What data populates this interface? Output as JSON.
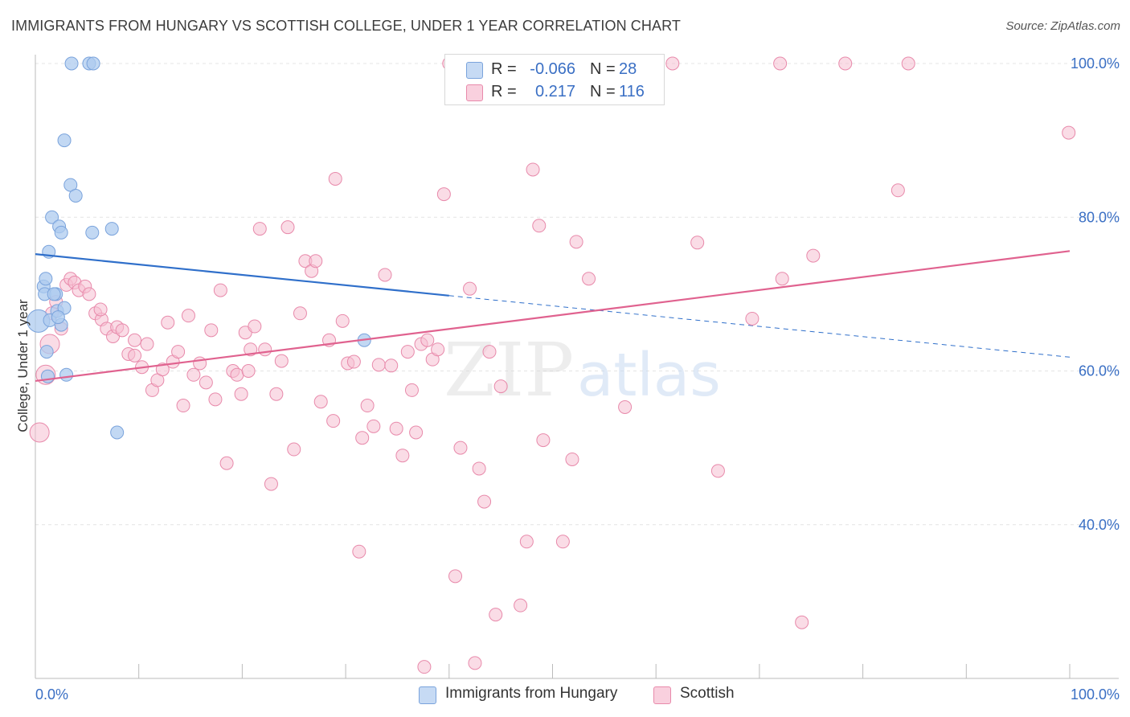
{
  "title": "IMMIGRANTS FROM HUNGARY VS SCOTTISH COLLEGE, UNDER 1 YEAR CORRELATION CHART",
  "source": "Source: ZipAtlas.com",
  "watermark": {
    "zip": "ZIP",
    "atlas": "atlas"
  },
  "legend_top": {
    "rows": [
      {
        "r_label": "R =",
        "r_value": "-0.066",
        "n_label": "N =",
        "n_value": "28"
      },
      {
        "r_label": "R =",
        "r_value": "0.217",
        "n_label": "N =",
        "n_value": "116"
      }
    ]
  },
  "legend_bottom": [
    "Immigrants from Hungary",
    "Scottish"
  ],
  "colors": {
    "blue_fill": "#aecbef",
    "blue_stroke": "#7aa3dc",
    "blue_line": "#2f6fca",
    "pink_fill": "#f6c0d2",
    "pink_stroke": "#e88aab",
    "pink_line": "#e0628f",
    "axis_text": "#3a6fc4",
    "grid": "#e4e4e4"
  },
  "chart_data": {
    "type": "scatter",
    "xlabel": "",
    "ylabel": "College, Under 1 year",
    "xlim": [
      0,
      100
    ],
    "ylim": [
      20,
      100
    ],
    "x_tick_labels": [
      "0.0%",
      "100.0%"
    ],
    "y_tick_labels": [
      "100.0%",
      "80.0%",
      "60.0%",
      "40.0%"
    ],
    "y_tick_values": [
      100,
      80,
      60,
      40
    ],
    "grid": true,
    "series": [
      {
        "name": "Immigrants from Hungary",
        "color": "#aecbef",
        "trend": {
          "x": [
            0,
            40
          ],
          "y": [
            75.2,
            69.8
          ],
          "extended_to": [
            100,
            61.8
          ]
        },
        "points": [
          [
            0.3,
            66.5,
            14
          ],
          [
            0.8,
            71.0,
            8
          ],
          [
            1.0,
            72.0,
            8
          ],
          [
            0.9,
            70.0,
            8
          ],
          [
            1.1,
            62.5,
            8
          ],
          [
            1.2,
            59.3,
            8
          ],
          [
            1.3,
            75.5,
            8
          ],
          [
            1.4,
            66.6,
            8
          ],
          [
            1.6,
            80.0,
            8
          ],
          [
            2.0,
            70.0,
            8
          ],
          [
            2.1,
            67.8,
            8
          ],
          [
            2.3,
            78.8,
            8
          ],
          [
            2.5,
            66.0,
            8
          ],
          [
            2.5,
            78.0,
            8
          ],
          [
            2.8,
            68.2,
            8
          ],
          [
            2.8,
            90.0,
            8
          ],
          [
            3.0,
            59.5,
            8
          ],
          [
            3.4,
            84.2,
            8
          ],
          [
            3.9,
            82.8,
            8
          ],
          [
            3.5,
            100.0,
            8
          ],
          [
            5.2,
            100.0,
            8
          ],
          [
            5.6,
            100.0,
            8
          ],
          [
            5.5,
            78.0,
            8
          ],
          [
            7.4,
            78.5,
            8
          ],
          [
            7.9,
            52.0,
            8
          ],
          [
            31.8,
            64.0,
            8
          ],
          [
            1.8,
            70.0,
            8
          ],
          [
            2.2,
            67.0,
            8
          ]
        ]
      },
      {
        "name": "Scottish",
        "color": "#f6c0d2",
        "trend": {
          "x": [
            0,
            100
          ],
          "y": [
            58.7,
            75.6
          ]
        },
        "points": [
          [
            0.4,
            52.0,
            12
          ],
          [
            1.0,
            59.5,
            12
          ],
          [
            1.4,
            63.5,
            12
          ],
          [
            1.6,
            67.5,
            8
          ],
          [
            2.0,
            69.0,
            8
          ],
          [
            2.5,
            65.5,
            8
          ],
          [
            3.0,
            71.2,
            8
          ],
          [
            3.4,
            72.0,
            8
          ],
          [
            3.8,
            71.5,
            8
          ],
          [
            4.2,
            70.5,
            8
          ],
          [
            4.8,
            71.0,
            8
          ],
          [
            5.2,
            70.0,
            8
          ],
          [
            5.8,
            67.5,
            8
          ],
          [
            6.4,
            66.7,
            8
          ],
          [
            6.9,
            65.5,
            8
          ],
          [
            7.5,
            64.5,
            8
          ],
          [
            7.9,
            65.7,
            8
          ],
          [
            8.4,
            65.3,
            8
          ],
          [
            9.0,
            62.2,
            8
          ],
          [
            9.6,
            64.0,
            8
          ],
          [
            10.3,
            60.5,
            8
          ],
          [
            10.8,
            63.5,
            8
          ],
          [
            11.3,
            57.5,
            8
          ],
          [
            11.8,
            58.8,
            8
          ],
          [
            12.3,
            60.2,
            8
          ],
          [
            12.8,
            66.3,
            8
          ],
          [
            13.3,
            61.2,
            8
          ],
          [
            13.8,
            62.5,
            8
          ],
          [
            14.3,
            55.5,
            8
          ],
          [
            14.8,
            67.2,
            8
          ],
          [
            15.3,
            59.5,
            8
          ],
          [
            15.9,
            61.0,
            8
          ],
          [
            16.5,
            58.5,
            8
          ],
          [
            17.0,
            65.3,
            8
          ],
          [
            17.4,
            56.3,
            8
          ],
          [
            17.9,
            70.5,
            8
          ],
          [
            18.5,
            48.0,
            8
          ],
          [
            19.1,
            60.0,
            8
          ],
          [
            19.5,
            59.5,
            8
          ],
          [
            19.9,
            57.0,
            8
          ],
          [
            20.3,
            65.0,
            8
          ],
          [
            20.8,
            62.8,
            8
          ],
          [
            21.2,
            65.8,
            8
          ],
          [
            21.7,
            78.5,
            8
          ],
          [
            22.2,
            62.8,
            8
          ],
          [
            22.8,
            45.3,
            8
          ],
          [
            23.3,
            57.0,
            8
          ],
          [
            23.8,
            61.3,
            8
          ],
          [
            24.4,
            78.7,
            8
          ],
          [
            25.0,
            49.8,
            8
          ],
          [
            25.6,
            67.5,
            8
          ],
          [
            26.1,
            74.3,
            8
          ],
          [
            26.7,
            73.0,
            8
          ],
          [
            27.1,
            74.3,
            8
          ],
          [
            27.6,
            56.0,
            8
          ],
          [
            28.4,
            64.0,
            8
          ],
          [
            28.8,
            53.5,
            8
          ],
          [
            29.0,
            85.0,
            8
          ],
          [
            29.7,
            66.5,
            8
          ],
          [
            30.2,
            61.0,
            8
          ],
          [
            30.8,
            61.2,
            8
          ],
          [
            31.3,
            36.5,
            8
          ],
          [
            31.6,
            51.3,
            8
          ],
          [
            32.1,
            55.5,
            8
          ],
          [
            32.7,
            52.8,
            8
          ],
          [
            33.2,
            60.8,
            8
          ],
          [
            33.8,
            72.5,
            8
          ],
          [
            34.4,
            60.7,
            8
          ],
          [
            34.9,
            52.5,
            8
          ],
          [
            35.5,
            49.0,
            8
          ],
          [
            36.0,
            62.5,
            8
          ],
          [
            36.4,
            57.5,
            8
          ],
          [
            36.8,
            52.0,
            8
          ],
          [
            37.3,
            63.5,
            8
          ],
          [
            37.6,
            21.5,
            8
          ],
          [
            37.9,
            64.0,
            8
          ],
          [
            38.4,
            61.5,
            8
          ],
          [
            38.9,
            62.8,
            8
          ],
          [
            39.5,
            83.0,
            8
          ],
          [
            40.0,
            100.0,
            8
          ],
          [
            40.6,
            33.3,
            8
          ],
          [
            41.1,
            50.0,
            8
          ],
          [
            42.0,
            70.7,
            8
          ],
          [
            42.5,
            22.0,
            8
          ],
          [
            42.9,
            47.3,
            8
          ],
          [
            43.4,
            43.0,
            8
          ],
          [
            43.9,
            62.5,
            8
          ],
          [
            44.5,
            28.3,
            8
          ],
          [
            45.0,
            58.0,
            8
          ],
          [
            46.9,
            29.5,
            8
          ],
          [
            47.5,
            37.8,
            8
          ],
          [
            48.1,
            86.2,
            8
          ],
          [
            48.7,
            78.9,
            8
          ],
          [
            49.1,
            51.0,
            8
          ],
          [
            51.0,
            37.8,
            8
          ],
          [
            51.5,
            100.0,
            8
          ],
          [
            51.9,
            48.5,
            8
          ],
          [
            52.3,
            76.8,
            8
          ],
          [
            53.5,
            72.0,
            8
          ],
          [
            57.0,
            55.3,
            8
          ],
          [
            59.5,
            100.0,
            8
          ],
          [
            61.6,
            100.0,
            8
          ],
          [
            64.0,
            76.7,
            8
          ],
          [
            66.0,
            47.0,
            8
          ],
          [
            69.3,
            66.8,
            8
          ],
          [
            72.0,
            100.0,
            8
          ],
          [
            72.2,
            72.0,
            8
          ],
          [
            74.1,
            27.3,
            8
          ],
          [
            75.2,
            75.0,
            8
          ],
          [
            78.3,
            100.0,
            8
          ],
          [
            83.4,
            83.5,
            8
          ],
          [
            84.4,
            100.0,
            8
          ],
          [
            99.9,
            91.0,
            8
          ],
          [
            9.6,
            62.0,
            8
          ],
          [
            6.3,
            68.0,
            8
          ],
          [
            20.6,
            60.0,
            8
          ]
        ]
      }
    ]
  }
}
